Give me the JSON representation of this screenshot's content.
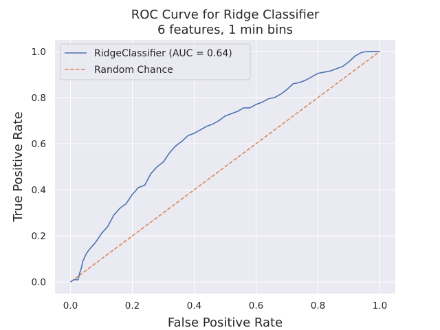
{
  "chart_data": {
    "type": "line",
    "title": "ROC Curve for Ridge Classifier",
    "subtitle": "6 features, 1 min bins",
    "xlabel": "False Positive Rate",
    "ylabel": "True Positive Rate",
    "xlim": [
      -0.05,
      1.05
    ],
    "ylim": [
      -0.05,
      1.05
    ],
    "xticks": [
      0.0,
      0.2,
      0.4,
      0.6,
      0.8,
      1.0
    ],
    "yticks": [
      0.0,
      0.2,
      0.4,
      0.6,
      0.8,
      1.0
    ],
    "xtick_labels": [
      "0.0",
      "0.2",
      "0.4",
      "0.6",
      "0.8",
      "1.0"
    ],
    "ytick_labels": [
      "0.0",
      "0.2",
      "0.4",
      "0.6",
      "0.8",
      "1.0"
    ],
    "grid": true,
    "legend_position": "top-left",
    "series": [
      {
        "name": "RidgeClassifier (AUC = 0.64)",
        "color": "#4c72b0",
        "style": "solid",
        "x": [
          0.0,
          0.01,
          0.025,
          0.03,
          0.035,
          0.04,
          0.05,
          0.06,
          0.08,
          0.1,
          0.12,
          0.14,
          0.16,
          0.18,
          0.2,
          0.22,
          0.24,
          0.26,
          0.28,
          0.3,
          0.32,
          0.34,
          0.36,
          0.38,
          0.4,
          0.42,
          0.44,
          0.46,
          0.48,
          0.5,
          0.52,
          0.54,
          0.56,
          0.58,
          0.6,
          0.62,
          0.64,
          0.66,
          0.68,
          0.7,
          0.72,
          0.74,
          0.76,
          0.78,
          0.8,
          0.82,
          0.84,
          0.86,
          0.88,
          0.9,
          0.92,
          0.94,
          0.96,
          0.98,
          1.0
        ],
        "y": [
          0.0,
          0.01,
          0.01,
          0.04,
          0.06,
          0.09,
          0.12,
          0.14,
          0.17,
          0.21,
          0.24,
          0.29,
          0.32,
          0.34,
          0.38,
          0.41,
          0.42,
          0.47,
          0.5,
          0.52,
          0.56,
          0.59,
          0.61,
          0.635,
          0.645,
          0.66,
          0.675,
          0.685,
          0.7,
          0.72,
          0.73,
          0.74,
          0.755,
          0.755,
          0.77,
          0.78,
          0.795,
          0.8,
          0.815,
          0.835,
          0.86,
          0.865,
          0.875,
          0.89,
          0.905,
          0.91,
          0.915,
          0.925,
          0.935,
          0.955,
          0.98,
          0.995,
          1.0,
          1.0,
          1.0
        ]
      },
      {
        "name": "Random Chance",
        "color": "#dd8452",
        "style": "dashed",
        "x": [
          0.0,
          1.0
        ],
        "y": [
          0.0,
          1.0
        ]
      }
    ]
  }
}
